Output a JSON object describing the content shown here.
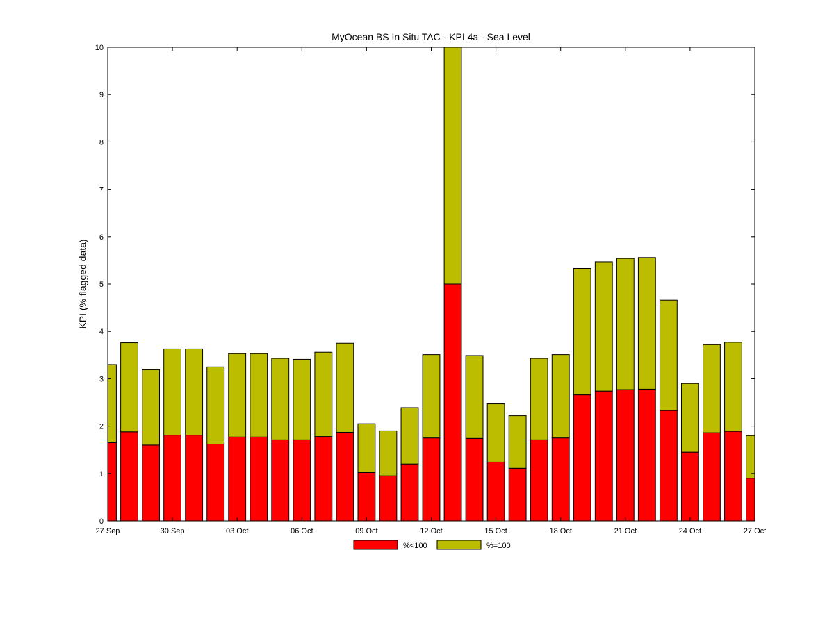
{
  "chart_data": {
    "type": "bar",
    "stacked": true,
    "title": "MyOcean  BS In Situ TAC - KPI 4a - Sea Level",
    "xlabel": "",
    "ylabel": "KPI (% flagged data)",
    "ylim": [
      0,
      10
    ],
    "yticks": [
      "0",
      "1",
      "2",
      "3",
      "4",
      "5",
      "6",
      "7",
      "8",
      "9",
      "10"
    ],
    "x_start": "2012-09-27",
    "x_end": "2012-10-27",
    "xticks": [
      {
        "date": "2012-09-27",
        "label": "27 Sep"
      },
      {
        "date": "2012-09-30",
        "label": "30 Sep"
      },
      {
        "date": "2012-10-03",
        "label": "03 Oct"
      },
      {
        "date": "2012-10-06",
        "label": "06 Oct"
      },
      {
        "date": "2012-10-09",
        "label": "09 Oct"
      },
      {
        "date": "2012-10-12",
        "label": "12 Oct"
      },
      {
        "date": "2012-10-15",
        "label": "15 Oct"
      },
      {
        "date": "2012-10-18",
        "label": "18 Oct"
      },
      {
        "date": "2012-10-21",
        "label": "21 Oct"
      },
      {
        "date": "2012-10-24",
        "label": "24 Oct"
      },
      {
        "date": "2012-10-27",
        "label": "27 Oct"
      }
    ],
    "x": [
      "2012-09-27",
      "2012-09-28",
      "2012-09-29",
      "2012-09-30",
      "2012-10-01",
      "2012-10-02",
      "2012-10-03",
      "2012-10-04",
      "2012-10-05",
      "2012-10-06",
      "2012-10-07",
      "2012-10-08",
      "2012-10-09",
      "2012-10-10",
      "2012-10-11",
      "2012-10-12",
      "2012-10-13",
      "2012-10-14",
      "2012-10-15",
      "2012-10-16",
      "2012-10-17",
      "2012-10-18",
      "2012-10-19",
      "2012-10-20",
      "2012-10-21",
      "2012-10-22",
      "2012-10-23",
      "2012-10-24",
      "2012-10-25",
      "2012-10-26",
      "2012-10-27"
    ],
    "series": [
      {
        "name": "%<100",
        "color": "#ff0000",
        "values": [
          1.65,
          1.88,
          1.6,
          1.81,
          1.81,
          1.62,
          1.77,
          1.77,
          1.71,
          1.71,
          1.78,
          1.87,
          1.02,
          0.95,
          1.2,
          1.75,
          5.0,
          1.74,
          1.24,
          1.11,
          1.71,
          1.75,
          2.66,
          2.74,
          2.77,
          2.78,
          2.33,
          1.45,
          1.86,
          1.89,
          0.9
        ]
      },
      {
        "name": "%=100",
        "color": "#bcbc00",
        "values": [
          1.65,
          1.88,
          1.59,
          1.82,
          1.82,
          1.63,
          1.76,
          1.76,
          1.72,
          1.7,
          1.78,
          1.88,
          1.03,
          0.95,
          1.19,
          1.76,
          5.0,
          1.75,
          1.23,
          1.11,
          1.72,
          1.76,
          2.67,
          2.73,
          2.77,
          2.78,
          2.33,
          1.45,
          1.86,
          1.88,
          0.9
        ]
      }
    ],
    "legend_position": "bottom-center",
    "grid": false
  }
}
